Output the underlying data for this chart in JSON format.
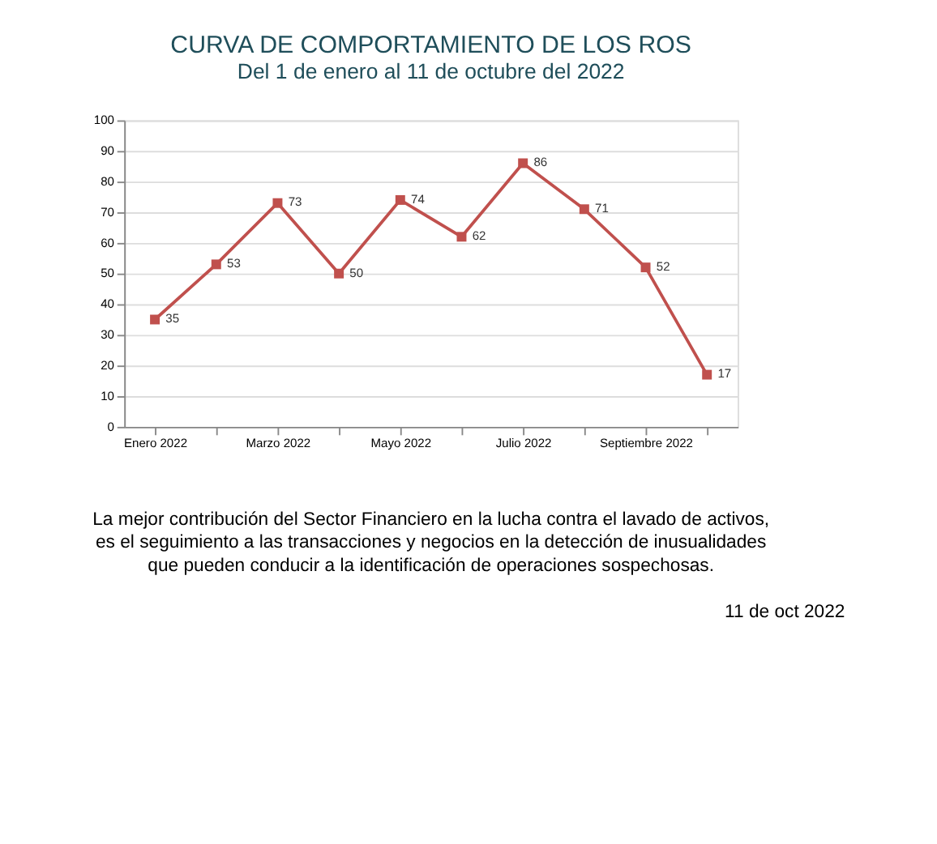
{
  "chart_data": {
    "type": "line",
    "title": "CURVA DE COMPORTAMIENTO DE LOS ROS",
    "subtitle": "Del 1 de enero al 11 de octubre del 2022",
    "categories": [
      "Enero 2022",
      null,
      "Marzo 2022",
      null,
      "Mayo 2022",
      null,
      "Julio 2022",
      null,
      "Septiembre 2022",
      null
    ],
    "series": [
      {
        "color": "#c0504d",
        "values": [
          35,
          53,
          73,
          50,
          74,
          62,
          86,
          71,
          52,
          17
        ]
      }
    ],
    "ylim": [
      0,
      100
    ],
    "yticks": [
      0,
      10,
      20,
      30,
      40,
      50,
      60,
      70,
      80,
      90,
      100
    ],
    "grid": "y",
    "marker": "square",
    "line_style": "solid",
    "data_labels": true,
    "annotations": [
      "La mejor contribución del Sector Financiero en la lucha contra el lavado de activos,\nes el seguimiento a las transacciones y negocios en la detección de inusualidades\nque pueden conducir a la identificación de operaciones sospechosas.",
      "11 de oct 2022"
    ]
  }
}
